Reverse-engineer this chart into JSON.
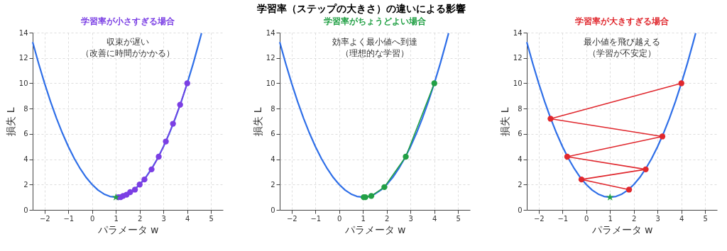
{
  "chart_data": [
    {
      "type": "other",
      "title": "学習率（ステップの大きさ）の違いによる影響"
    },
    {
      "type": "line",
      "title": "学習率が小さすぎる場合",
      "xlabel": "パラメータ w",
      "ylabel": "損失 L",
      "annotations": [
        "収束が遅い",
        "（改善に時間がかかる）"
      ],
      "xlim": [
        -2.5,
        5.5
      ],
      "ylim": [
        0,
        14
      ],
      "xticks": [
        -2,
        -1,
        0,
        1,
        2,
        3,
        4,
        5
      ],
      "yticks": [
        0,
        2,
        4,
        6,
        8,
        10,
        12,
        14
      ],
      "grid": true,
      "line_style": "solid",
      "series": [
        {
          "type": "line",
          "marker": "none",
          "color": "#2f6fe8",
          "x": [
            -2.5,
            -2.25,
            -2,
            -1.75,
            -1.5,
            -1.25,
            -1,
            -0.75,
            -0.5,
            -0.25,
            0,
            0.25,
            0.5,
            0.75,
            1,
            1.25,
            1.5,
            1.75,
            2,
            2.25,
            2.5,
            2.75,
            3,
            3.25,
            3.5,
            3.75,
            4,
            4.25,
            4.5,
            4.6
          ],
          "values": [
            13.25,
            11.56,
            10,
            8.56,
            7.25,
            6.06,
            5,
            4.06,
            3.25,
            2.56,
            2,
            1.56,
            1.25,
            1.06,
            1,
            1.06,
            1.25,
            1.56,
            2,
            2.56,
            3.25,
            4.06,
            5,
            6.06,
            7.25,
            8.56,
            10,
            11.56,
            13.25,
            13.96
          ]
        },
        {
          "type": "line",
          "marker": "circle",
          "color": "#7b3fe4",
          "x": [
            4,
            3.7,
            3.4,
            3.1,
            2.8,
            2.5,
            2.2,
            2.0,
            1.8,
            1.6,
            1.45,
            1.3,
            1.2,
            1.1
          ],
          "values": [
            10,
            8.3,
            6.8,
            5.4,
            4.2,
            3.2,
            2.4,
            2.0,
            1.6,
            1.4,
            1.2,
            1.1,
            1.0,
            1.0
          ]
        },
        {
          "type": "scatter",
          "marker": "star",
          "color": "#22a045",
          "x": [
            1
          ],
          "values": [
            1
          ]
        }
      ]
    },
    {
      "type": "line",
      "title": "学習率がちょうどよい場合",
      "xlabel": "パラメータ w",
      "ylabel": "損失 L",
      "annotations": [
        "効率よく最小値へ到達",
        "（理想的な学習）"
      ],
      "xlim": [
        -2.5,
        5.5
      ],
      "ylim": [
        0,
        14
      ],
      "xticks": [
        -2,
        -1,
        0,
        1,
        2,
        3,
        4,
        5
      ],
      "yticks": [
        0,
        2,
        4,
        6,
        8,
        10,
        12,
        14
      ],
      "grid": true,
      "line_style": "solid",
      "series": [
        {
          "type": "line",
          "marker": "none",
          "color": "#2f6fe8",
          "x": [
            -2.5,
            -2.25,
            -2,
            -1.75,
            -1.5,
            -1.25,
            -1,
            -0.75,
            -0.5,
            -0.25,
            0,
            0.25,
            0.5,
            0.75,
            1,
            1.25,
            1.5,
            1.75,
            2,
            2.25,
            2.5,
            2.75,
            3,
            3.25,
            3.5,
            3.75,
            4,
            4.25,
            4.5,
            4.6
          ],
          "values": [
            13.25,
            11.56,
            10,
            8.56,
            7.25,
            6.06,
            5,
            4.06,
            3.25,
            2.56,
            2,
            1.56,
            1.25,
            1.06,
            1,
            1.06,
            1.25,
            1.56,
            2,
            2.56,
            3.25,
            4.06,
            5,
            6.06,
            7.25,
            8.56,
            10,
            11.56,
            13.25,
            13.96
          ]
        },
        {
          "type": "line",
          "marker": "circle",
          "color": "#22a045",
          "x": [
            4,
            2.8,
            1.9,
            1.35,
            1.1,
            1.03
          ],
          "values": [
            10,
            4.2,
            1.8,
            1.1,
            1.0,
            1.0
          ]
        }
      ]
    },
    {
      "type": "line",
      "title": "学習率が大きすぎる場合",
      "xlabel": "パラメータ w",
      "ylabel": "損失 L",
      "annotations": [
        "最小値を飛び越える",
        "（学習が不安定）"
      ],
      "xlim": [
        -2.5,
        5.5
      ],
      "ylim": [
        0,
        14
      ],
      "xticks": [
        -2,
        -1,
        0,
        1,
        2,
        3,
        4,
        5
      ],
      "yticks": [
        0,
        2,
        4,
        6,
        8,
        10,
        12,
        14
      ],
      "grid": true,
      "line_style": "solid",
      "series": [
        {
          "type": "line",
          "marker": "none",
          "color": "#2f6fe8",
          "x": [
            -2.5,
            -2.25,
            -2,
            -1.75,
            -1.5,
            -1.25,
            -1,
            -0.75,
            -0.5,
            -0.25,
            0,
            0.25,
            0.5,
            0.75,
            1,
            1.25,
            1.5,
            1.75,
            2,
            2.25,
            2.5,
            2.75,
            3,
            3.25,
            3.5,
            3.75,
            4,
            4.25,
            4.5,
            4.6
          ],
          "values": [
            13.25,
            11.56,
            10,
            8.56,
            7.25,
            6.06,
            5,
            4.06,
            3.25,
            2.56,
            2,
            1.56,
            1.25,
            1.06,
            1,
            1.06,
            1.25,
            1.56,
            2,
            2.56,
            3.25,
            4.06,
            5,
            6.06,
            7.25,
            8.56,
            10,
            11.56,
            13.25,
            13.96
          ]
        },
        {
          "type": "line",
          "marker": "circle",
          "color": "#e0282e",
          "x": [
            4,
            -1.5,
            3.2,
            -0.8,
            2.5,
            -0.2,
            1.8
          ],
          "values": [
            10,
            7.2,
            5.8,
            4.2,
            3.2,
            2.4,
            1.6
          ]
        },
        {
          "type": "scatter",
          "marker": "star",
          "color": "#22a045",
          "x": [
            1
          ],
          "values": [
            1
          ]
        }
      ]
    }
  ]
}
